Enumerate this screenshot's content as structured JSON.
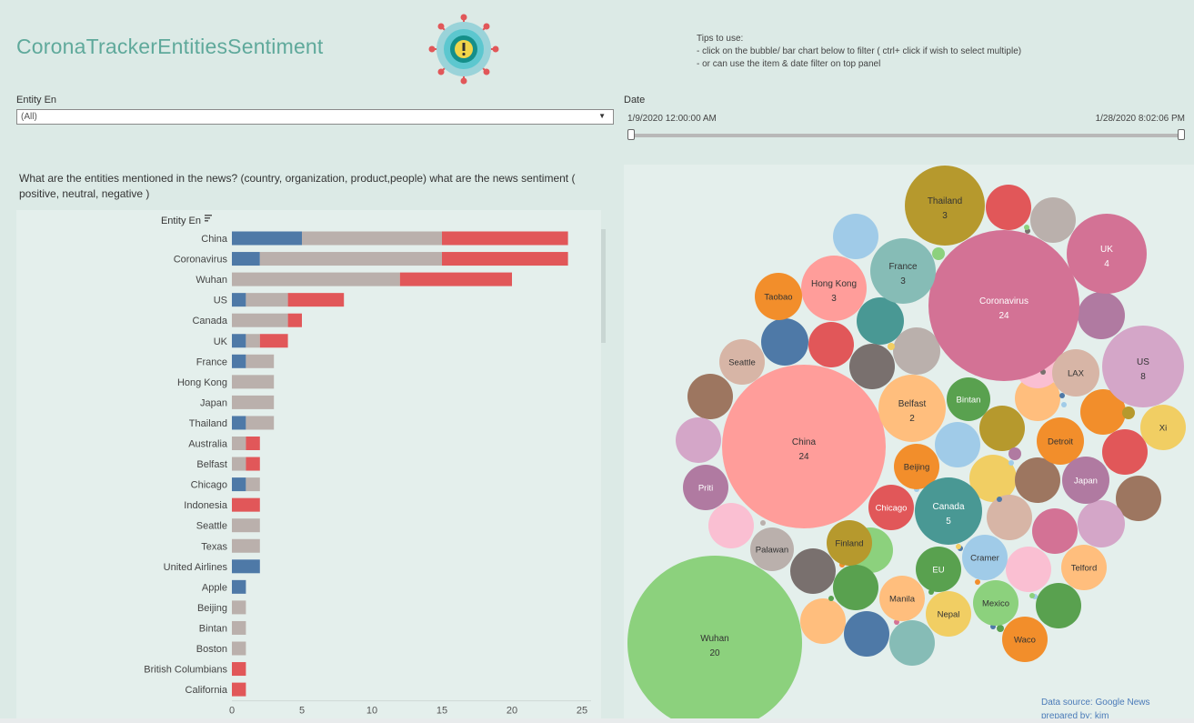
{
  "header": {
    "title": "CoronaTrackerEntitiesSentiment",
    "tips": [
      "Tips to use:",
      "- click on the bubble/ bar chart below to filter ( ctrl+ click if wish to select multiple)",
      "- or can use the item & date filter on top panel"
    ]
  },
  "filters": {
    "entity_label": "Entity En",
    "entity_value": "(All)",
    "date_label": "Date",
    "date_start": "1/9/2020 12:00:00 AM",
    "date_end": "1/28/2020 8:02:06 PM"
  },
  "question": "What are the entities mentioned in the news? (country, organization, product,people)  what are the news sentiment ( positive, neutral, negative )",
  "colors": {
    "positive": "#4e79a7",
    "neutral": "#bab0ac",
    "negative": "#e15759",
    "title": "#5fa99b",
    "background": "#dceae6"
  },
  "chart_data": [
    {
      "type": "bar",
      "stacked": true,
      "orientation": "horizontal",
      "ylabel": "Entity En",
      "xlim": [
        0,
        25
      ],
      "xticks": [
        0,
        5,
        10,
        15,
        20,
        25
      ],
      "categories": [
        "China",
        "Coronavirus",
        "Wuhan",
        "US",
        "Canada",
        "UK",
        "France",
        "Hong Kong",
        "Japan",
        "Thailand",
        "Australia",
        "Belfast",
        "Chicago",
        "Indonesia",
        "Seattle",
        "Texas",
        "United Airlines",
        "Apple",
        "Beijing",
        "Bintan",
        "Boston",
        "British Columbians",
        "California"
      ],
      "series": [
        {
          "color": "#4e79a7",
          "values": [
            5,
            2,
            0,
            1,
            0,
            1,
            1,
            0,
            0,
            1,
            0,
            0,
            1,
            0,
            0,
            0,
            2,
            1,
            0,
            0,
            0,
            0,
            0
          ]
        },
        {
          "color": "#bab0ac",
          "values": [
            10,
            13,
            12,
            3,
            4,
            1,
            2,
            3,
            3,
            2,
            1,
            1,
            1,
            0,
            2,
            2,
            0,
            0,
            1,
            1,
            1,
            0,
            0
          ]
        },
        {
          "color": "#e15759",
          "values": [
            9,
            9,
            8,
            4,
            1,
            2,
            0,
            0,
            0,
            0,
            1,
            1,
            0,
            2,
            0,
            0,
            0,
            0,
            0,
            0,
            0,
            1,
            1
          ]
        }
      ]
    },
    {
      "type": "bubble",
      "bubbles": [
        {
          "label": "Wuhan",
          "value": "20",
          "color": "#8cd17d"
        },
        {
          "label": "China",
          "value": "24",
          "color": "#ff9d9a"
        },
        {
          "label": "Coronavirus",
          "value": "24",
          "color": "#d37295"
        },
        {
          "label": "Thailand",
          "value": "3",
          "color": "#b6992d"
        },
        {
          "label": "UK",
          "value": "4",
          "color": "#d37295"
        },
        {
          "label": "France",
          "value": "3",
          "color": "#86bcb6"
        },
        {
          "label": "Hong Kong",
          "value": "3",
          "color": "#ff9d9a"
        },
        {
          "label": "Taobao",
          "value": "",
          "color": "#f28e2b"
        },
        {
          "label": "US",
          "value": "8",
          "color": "#d4a6c8"
        },
        {
          "label": "LAX",
          "value": "",
          "color": "#d7b5a6"
        },
        {
          "label": "Xi",
          "value": "",
          "color": "#f1ce63"
        },
        {
          "label": "Seattle",
          "value": "",
          "color": "#d7b5a6"
        },
        {
          "label": "Belfast",
          "value": "2",
          "color": "#ffbe7d"
        },
        {
          "label": "Bintan",
          "value": "",
          "color": "#59a14f"
        },
        {
          "label": "Detroit",
          "value": "",
          "color": "#f28e2b"
        },
        {
          "label": "Beijing",
          "value": "",
          "color": "#f28e2b"
        },
        {
          "label": "Japan",
          "value": "",
          "color": "#b07aa1"
        },
        {
          "label": "Priti",
          "value": "",
          "color": "#b07aa1"
        },
        {
          "label": "Chicago",
          "value": "",
          "color": "#e15759"
        },
        {
          "label": "Canada",
          "value": "5",
          "color": "#499894"
        },
        {
          "label": "Palawan",
          "value": "",
          "color": "#bab0ac"
        },
        {
          "label": "Finland",
          "value": "",
          "color": "#b6992d"
        },
        {
          "label": "Cramer",
          "value": "",
          "color": "#a0cbe8"
        },
        {
          "label": "EU",
          "value": "",
          "color": "#59a14f"
        },
        {
          "label": "Telford",
          "value": "",
          "color": "#ffbe7d"
        },
        {
          "label": "Manila",
          "value": "",
          "color": "#ffbe7d"
        },
        {
          "label": "Mexico",
          "value": "",
          "color": "#8cd17d"
        },
        {
          "label": "Nepal",
          "value": "",
          "color": "#f1ce63"
        },
        {
          "label": "Waco",
          "value": "",
          "color": "#f28e2b"
        }
      ]
    }
  ],
  "footer": {
    "source": "Data source: Google News",
    "prepared": "prepared by: kim"
  }
}
